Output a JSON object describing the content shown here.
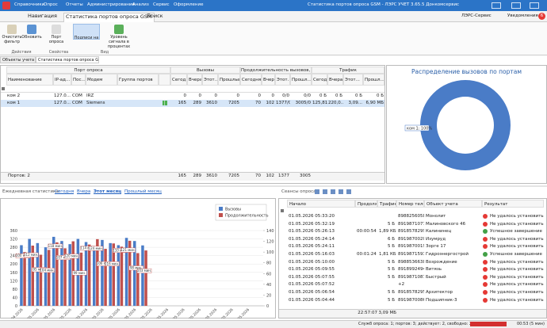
{
  "titlebar": {
    "menu": [
      "Справочники",
      "Опрос",
      "Отчеты",
      "Администрирование",
      "Анализ",
      "Сервис",
      "Оформление"
    ],
    "title": "Статистика портов опроса GSM - ЛЭРС УЧЕТ 3.65.5 Донкомсервис"
  },
  "ribbon": {
    "tabs": [
      "Навигация",
      "Статистика портов опроса GSM",
      "Поиск"
    ],
    "active_tab": 1,
    "service": "ЛЭРС-Сервис",
    "notifications": "Уведомления",
    "notification_count": 6,
    "buttons": [
      "Очистить фильтр",
      "Обновить",
      "Порт опроса",
      "Подписи на графике",
      "Уровень сигнала в процентах"
    ],
    "groups": [
      "Действия",
      "Свойства",
      "Вид"
    ]
  },
  "doc_tabs": [
    "Объекты учета",
    "Статистика портов опроса GSM"
  ],
  "ports_grid": {
    "group_headers": [
      "Порт опроса",
      "Вызовы",
      "Продолжительность вызовов, ...",
      "Трафик"
    ],
    "columns": [
      "Наименование",
      "IP-ад...",
      "Пос...",
      "Модем",
      "Группа портов",
      null,
      "Сегод...",
      "Вчера",
      "Этот...",
      "Прошлый...",
      "Сегодня",
      "Вчера",
      "Этот...",
      "Прошл...",
      "Сегодня",
      "Вчера",
      "Этот...",
      "Прошл..."
    ],
    "rows": [
      [
        "ком 2",
        "127.0...",
        "COM",
        "IRZ",
        null,
        null,
        "0",
        "0",
        "0",
        "0",
        "0",
        "0",
        "0/0",
        "0/0",
        "0 Б",
        "0 Б",
        "0 Б",
        "0 Б"
      ],
      [
        "ком 1",
        "127.0...",
        "COM",
        "Siemens",
        null,
        null,
        "165",
        "289",
        "3610",
        "7205",
        "70",
        "102",
        "1377/0",
        "3005/0",
        "125,81...",
        "220,0...",
        "3,09...",
        "6,90 МБ"
      ]
    ],
    "selected_row": 1,
    "footer_label": "Портов: 2",
    "footer": [
      165,
      289,
      3610,
      7205,
      70,
      102,
      1377,
      3005
    ]
  },
  "donut": {
    "type": "pie",
    "title": "Распределение вызовов по портам",
    "categories": [
      "ком 1"
    ],
    "values": [
      100
    ],
    "value_labels": [
      "ком 1: 100%"
    ],
    "colors": [
      "#4a7cc7"
    ]
  },
  "daily": {
    "label": "Ежедневная статистика:",
    "links": [
      "Сегодня",
      "Вчера",
      "Этот месяц",
      "Прошлый месяц"
    ],
    "active_link": 2,
    "chart": {
      "type": "bar",
      "categories": [
        "29.04.2026",
        null,
        "01.05.2026",
        null,
        "03.05.2026",
        null,
        "05.05.2026",
        null,
        "07.05.2026",
        null,
        "09.05.2026",
        null,
        "11.05.2026",
        null,
        "13.05.2026",
        null,
        "15.05.2026",
        null,
        "17.05.2026",
        null,
        "19.05.2026",
        null,
        "21.05.2026",
        null,
        "23.05.2026",
        null,
        "25.05.2026",
        null,
        "27.05.2026"
      ],
      "series": [
        {
          "name": "Вызовы",
          "color": "#4a7cc7",
          "values": [
            290,
            320,
            300,
            280,
            330,
            310,
            295,
            320,
            305,
            285,
            315,
            300,
            290,
            325,
            310,
            289,
            null,
            null,
            null,
            null,
            null,
            null,
            null,
            null,
            null,
            null,
            null,
            null,
            null
          ]
        },
        {
          "name": "Продолжительность",
          "color": "#c0504d",
          "axis": "y2",
          "values": [
            100,
            112,
            95,
            104,
            118,
            107,
            120,
            99,
            114,
            124,
            106,
            116,
            110,
            121,
            98,
            103,
            null,
            null,
            null,
            null,
            null,
            null,
            null,
            null,
            null,
            null,
            null,
            null,
            null
          ],
          "value_labels": [
            "100 мин.",
            "112 мин.",
            "95 мин.",
            "104 мин.",
            "118 мин.",
            "107 мин.",
            "120 мин.",
            "99 мин.",
            "114 мин.",
            "124 мин.",
            "106 мин.",
            "116 мин.",
            "110 мин.",
            "121 мин.",
            "98 мин.",
            "103 мин.",
            null,
            null,
            null,
            null,
            null,
            null,
            null,
            null,
            null,
            null,
            null,
            null,
            null
          ]
        }
      ],
      "ylim": [
        0,
        360
      ],
      "yticks": [
        0,
        40,
        80,
        120,
        160,
        200,
        240,
        280,
        320,
        360
      ],
      "y2lim": [
        0,
        140
      ],
      "y2ticks": [
        0,
        20,
        40,
        60,
        80,
        100,
        120,
        140
      ],
      "grid": true,
      "legend": "upper right"
    }
  },
  "sessions": {
    "label": "Сеансы опроса:",
    "columns": [
      "Начало",
      "Продолж...",
      "Трафик",
      "Номер теле...",
      "Объект учета",
      "Результат"
    ],
    "rows": [
      [
        "01.05.2026 05:33:20",
        null,
        null,
        "89882560582",
        "Монолит",
        "Не удалось установить..."
      ],
      [
        "01.05.2026 05:32:19",
        null,
        "5 Б",
        "89198710775",
        "Малиновского 46",
        "Не удалось установить..."
      ],
      [
        "01.05.2026 05:26:13",
        "00:00:54",
        "1,89 КБ",
        "89185782994",
        "Калининец",
        "Успешное завершение (..."
      ],
      [
        "01.05.2026 05:24:14",
        null,
        "6 Б",
        "89198700201",
        "Изумруд",
        "Не удалось установить..."
      ],
      [
        "01.05.2026 05:24:11",
        null,
        "5 Б",
        "89198700198",
        "Зорге 17",
        "Не удалось установить..."
      ],
      [
        "01.05.2026 05:16:03",
        "00:01:24",
        "1,81 КБ",
        "89198715938",
        "Гидроэнергострой",
        "Успешное завершение (..."
      ],
      [
        "01.05.2026 05:10:00",
        null,
        "5 Б",
        "89885366382",
        "Возрождение",
        "Не удалось установить..."
      ],
      [
        "01.05.2026 05:09:55",
        null,
        "5 Б",
        "89189924941",
        "Витязь",
        "Не удалось установить..."
      ],
      [
        "01.05.2026 05:07:55",
        null,
        "5 Б",
        "89198710877",
        "Быстрый",
        "Не удалось установить..."
      ],
      [
        "01.05.2026 05:07:52",
        null,
        null,
        "+2",
        null,
        "Не удалось установить..."
      ],
      [
        "01.05.2026 05:06:54",
        null,
        "5 Б",
        "89185782958",
        "Архитектор",
        "Не удалось установить..."
      ],
      [
        "01.05.2026 05:04:44",
        null,
        "5 Б",
        "89198700861",
        "Подшипник-3",
        "Не удалось установить..."
      ]
    ],
    "result_icons": [
      "error",
      "error",
      "success",
      "error",
      "error",
      "success",
      "error",
      "error",
      "error",
      "error",
      "error",
      "error"
    ],
    "footer": [
      "22:57:07",
      "3,09 МБ"
    ]
  },
  "statusbar": {
    "services": "Служб опроса: 1; портов: 3; действует: 2, свободно: 2",
    "time": "00:53 (5 мин)"
  }
}
